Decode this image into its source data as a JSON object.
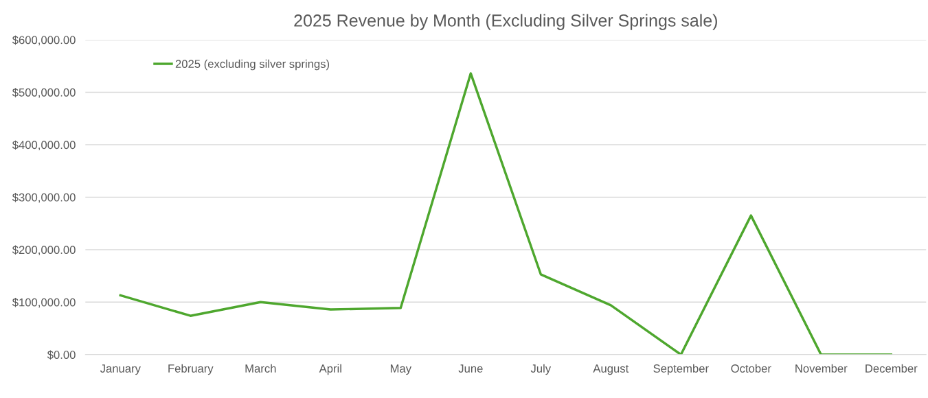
{
  "chart_data": {
    "type": "line",
    "title": "2025 Revenue by Month (Excluding Silver Springs sale)",
    "categories": [
      "January",
      "February",
      "March",
      "April",
      "May",
      "June",
      "July",
      "August",
      "September",
      "October",
      "November",
      "December"
    ],
    "series": [
      {
        "name": "2025 (excluding silver springs)",
        "color": "#4ea72e",
        "values": [
          113000,
          74000,
          100000,
          86000,
          89000,
          536000,
          153000,
          94000,
          0,
          265000,
          0,
          0
        ]
      }
    ],
    "ylim": [
      0,
      600000
    ],
    "yticks": [
      {
        "value": 0,
        "label": "$0.00"
      },
      {
        "value": 100000,
        "label": "$100,000.00"
      },
      {
        "value": 200000,
        "label": "$200,000.00"
      },
      {
        "value": 300000,
        "label": "$300,000.00"
      },
      {
        "value": 400000,
        "label": "$400,000.00"
      },
      {
        "value": 500000,
        "label": "$500,000.00"
      },
      {
        "value": 600000,
        "label": "$600,000.00"
      }
    ],
    "grid": "y",
    "legend": "top left",
    "marker": "none",
    "line_style": "solid"
  }
}
